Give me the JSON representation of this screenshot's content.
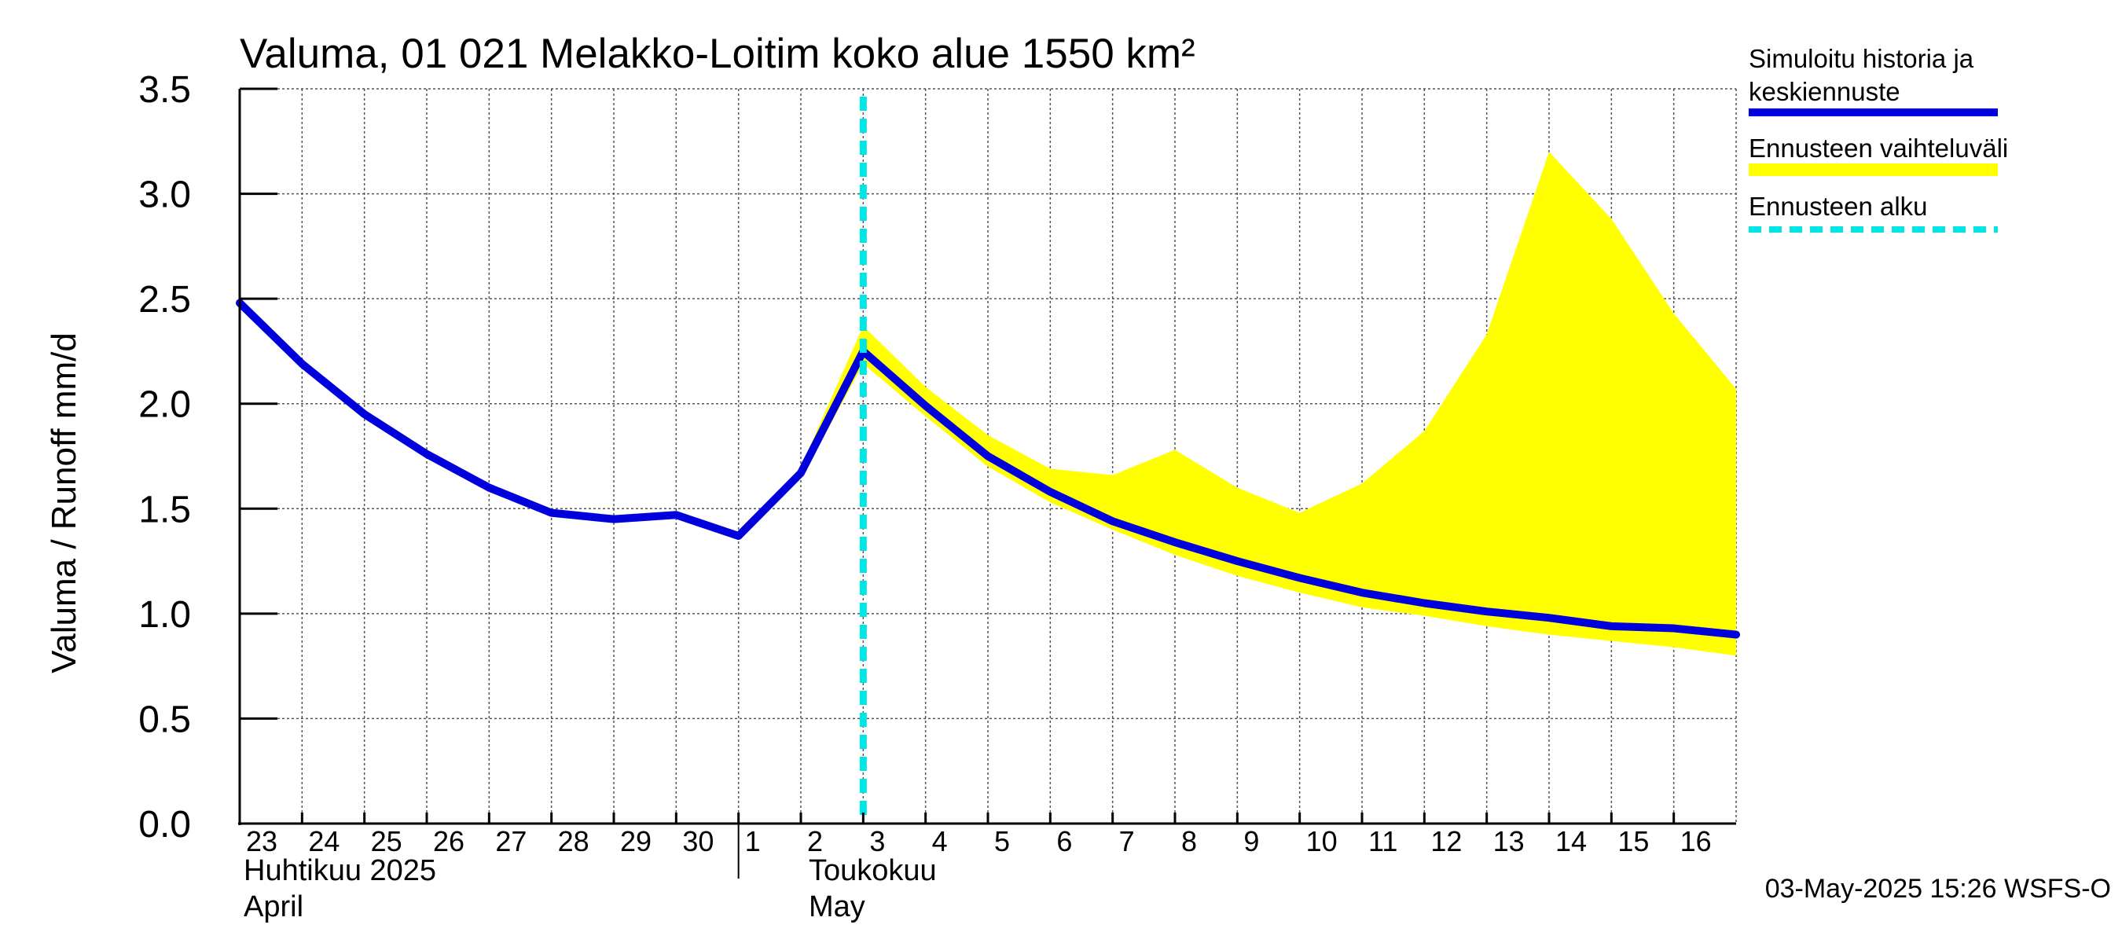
{
  "chart_data": {
    "type": "line",
    "title": "Valuma, 01 021 Melakko-Loitim koko alue 1550 km²",
    "ylabel": "Valuma / Runoff    mm/d",
    "ylim": [
      0,
      3.5
    ],
    "yticks": [
      "0.0",
      "0.5",
      "1.0",
      "1.5",
      "2.0",
      "2.5",
      "3.0",
      "3.5"
    ],
    "ytick_values": [
      0,
      0.5,
      1.0,
      1.5,
      2.0,
      2.5,
      3.0,
      3.5
    ],
    "x_days": [
      "23",
      "24",
      "25",
      "26",
      "27",
      "28",
      "29",
      "30",
      "1",
      "2",
      "3",
      "4",
      "5",
      "6",
      "7",
      "8",
      "9",
      "10",
      "11",
      "12",
      "13",
      "14",
      "15",
      "16"
    ],
    "month_labels": {
      "april_fi": "Huhtikuu  2025",
      "april_en": "April",
      "may_fi": "Toukokuu",
      "may_en": "May"
    },
    "forecast_start_day_index": 10,
    "grid": true,
    "legend_position": "right",
    "legend": {
      "simulated_line1": "Simuloitu historia ja",
      "simulated_line2": "keskiennuste",
      "range": "Ennusteen vaihteluväli",
      "start": "Ennusteen alku"
    },
    "series": [
      {
        "name": "Simuloitu historia ja keskiennuste",
        "color": "#0000dd",
        "points": [
          [
            0,
            2.48
          ],
          [
            1,
            2.19
          ],
          [
            2,
            1.95
          ],
          [
            3,
            1.76
          ],
          [
            4,
            1.6
          ],
          [
            5,
            1.48
          ],
          [
            6,
            1.45
          ],
          [
            7,
            1.47
          ],
          [
            8,
            1.37
          ],
          [
            9,
            1.67
          ],
          [
            10,
            2.25
          ],
          [
            11,
            1.99
          ],
          [
            12,
            1.75
          ],
          [
            13,
            1.58
          ],
          [
            14,
            1.44
          ],
          [
            15,
            1.34
          ],
          [
            16,
            1.25
          ],
          [
            17,
            1.17
          ],
          [
            18,
            1.1
          ],
          [
            19,
            1.05
          ],
          [
            20,
            1.01
          ],
          [
            21,
            0.98
          ],
          [
            22,
            0.94
          ],
          [
            23,
            0.93
          ],
          [
            24,
            0.9
          ]
        ]
      }
    ],
    "range_band": {
      "name": "Ennusteen vaihteluväli",
      "color": "#ffff00",
      "upper": [
        [
          9,
          1.7
        ],
        [
          10,
          2.37
        ],
        [
          11,
          2.08
        ],
        [
          12,
          1.85
        ],
        [
          13,
          1.69
        ],
        [
          14,
          1.66
        ],
        [
          15,
          1.78
        ],
        [
          16,
          1.6
        ],
        [
          17,
          1.48
        ],
        [
          18,
          1.62
        ],
        [
          19,
          1.87
        ],
        [
          20,
          2.33
        ],
        [
          21,
          3.2
        ],
        [
          22,
          2.88
        ],
        [
          23,
          2.43
        ],
        [
          24,
          2.07
        ]
      ],
      "lower": [
        [
          24,
          0.8
        ],
        [
          23,
          0.84
        ],
        [
          22,
          0.87
        ],
        [
          21,
          0.9
        ],
        [
          20,
          0.94
        ],
        [
          19,
          0.99
        ],
        [
          18,
          1.03
        ],
        [
          17,
          1.1
        ],
        [
          16,
          1.18
        ],
        [
          15,
          1.28
        ],
        [
          14,
          1.4
        ],
        [
          13,
          1.53
        ],
        [
          12,
          1.7
        ],
        [
          11,
          1.94
        ],
        [
          10,
          2.19
        ],
        [
          9,
          1.64
        ]
      ]
    },
    "forecast_line_color": "#00e5e5"
  },
  "footer": {
    "timestamp": "03-May-2025 15:26 WSFS-O"
  }
}
